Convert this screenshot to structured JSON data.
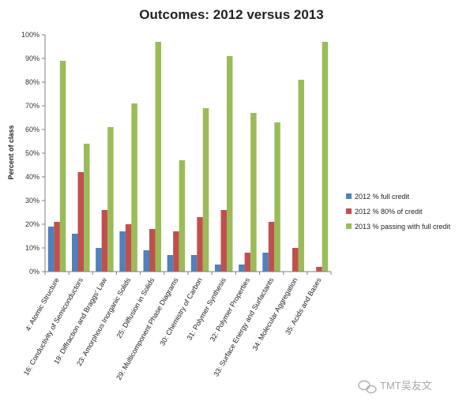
{
  "chart_data": {
    "type": "bar",
    "title": "Outcomes: 2012 versus 2013",
    "ylabel": "Percent of class",
    "xlabel": "",
    "ylim": [
      0,
      100
    ],
    "yticks": [
      "0%",
      "10%",
      "20%",
      "30%",
      "40%",
      "50%",
      "60%",
      "70%",
      "80%",
      "90%",
      "100%"
    ],
    "grid": false,
    "legend_position": "right",
    "categories": [
      "4: Atomic Structure",
      "16: Conductivity of Semiconductors",
      "19: Diffraction and Braggs' Law",
      "23: Amorphous Inorganic Solids",
      "25: Diffusion in Solids",
      "29: Multicomponent Phase Diagrams",
      "30: Chemistry of Carbon",
      "31: Polymer Synthesis",
      "32: Polymer Properties",
      "33: Surface Energy and Surfactants",
      "34: Molecular Aggregation",
      "35: Acids and Bases"
    ],
    "series": [
      {
        "name": "2012 % full credit",
        "color": "#4f81bd",
        "values": [
          19,
          16,
          10,
          17,
          9,
          7,
          7,
          3,
          3,
          8,
          0,
          0
        ]
      },
      {
        "name": "2012 % 80% of credit",
        "color": "#c0504d",
        "values": [
          21,
          42,
          26,
          20,
          18,
          17,
          23,
          26,
          8,
          21,
          10,
          2
        ]
      },
      {
        "name": "2013 % passing with full credit",
        "color": "#9bbb59",
        "values": [
          89,
          54,
          61,
          71,
          97,
          47,
          69,
          91,
          67,
          63,
          81,
          97
        ]
      }
    ]
  },
  "watermark": {
    "text": "TMT吴友文"
  }
}
